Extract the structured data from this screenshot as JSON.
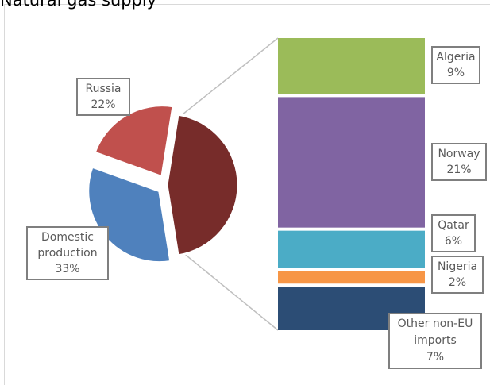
{
  "chart_data": [
    {
      "type": "pie",
      "title": "Natural gas supply",
      "slices": [
        {
          "name": "Russia",
          "label": "22%",
          "value": 22,
          "color": "#c0504d",
          "exploded": true
        },
        {
          "name": "Domestic production",
          "label": "33%",
          "value": 33,
          "color": "#4f81bd",
          "exploded": true
        },
        {
          "name": "",
          "label": "",
          "value": 45,
          "color": "#772c2a",
          "exploded": false
        }
      ]
    },
    {
      "type": "bar",
      "stacked": true,
      "segments": [
        {
          "name": "Algeria",
          "label": "9%",
          "value": 9,
          "color": "#9bbb59"
        },
        {
          "name": "Norway",
          "label": "21%",
          "value": 21,
          "color": "#8064a2"
        },
        {
          "name": "Qatar",
          "label": "6%",
          "value": 6,
          "color": "#4bacc6"
        },
        {
          "name": "Nigeria",
          "label": "2%",
          "value": 2,
          "color": "#f79646"
        },
        {
          "name": "Other non-EU imports",
          "label": "7%",
          "value": 7,
          "color": "#2c4d75"
        }
      ]
    }
  ]
}
